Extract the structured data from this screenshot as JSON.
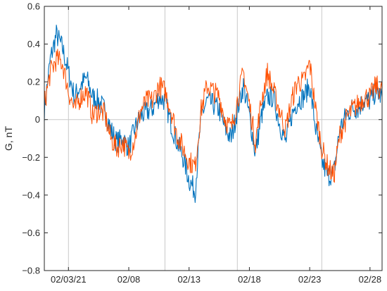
{
  "chart_data": {
    "type": "line",
    "title": "",
    "xlabel": "",
    "ylabel": "G, nT",
    "xlim": [
      "2021-02-01",
      "2021-03-01"
    ],
    "ylim": [
      -0.8,
      0.6
    ],
    "yticks": [
      -0.8,
      -0.6,
      -0.4,
      -0.2,
      0,
      0.2,
      0.4,
      0.6
    ],
    "ytick_labels": [
      "−0.8",
      "−0.6",
      "−0.4",
      "−0.2",
      "0",
      "0.2",
      "0.4",
      "0.6"
    ],
    "xticks": [
      "2021-02-03",
      "2021-02-08",
      "2021-02-13",
      "2021-02-18",
      "2021-02-23",
      "2021-02-28"
    ],
    "xtick_labels": [
      "02/03/21",
      "02/08",
      "02/13",
      "02/18",
      "02/23",
      "02/28"
    ],
    "vertical_markers": [
      "2021-02-03",
      "2021-02-11",
      "2021-02-17",
      "2021-02-24"
    ],
    "zero_line": true,
    "grid": false,
    "legend": "none",
    "series": [
      {
        "color": "#0072BD",
        "x": [
          "2021-02-01",
          "2021-02-01T12",
          "2021-02-02",
          "2021-02-02T12",
          "2021-02-03",
          "2021-02-03T12",
          "2021-02-04",
          "2021-02-04T12",
          "2021-02-05",
          "2021-02-05T12",
          "2021-02-06",
          "2021-02-06T12",
          "2021-02-07",
          "2021-02-07T12",
          "2021-02-08",
          "2021-02-08T12",
          "2021-02-09",
          "2021-02-09T12",
          "2021-02-10",
          "2021-02-10T12",
          "2021-02-11",
          "2021-02-11T12",
          "2021-02-12",
          "2021-02-12T12",
          "2021-02-13",
          "2021-02-13T12",
          "2021-02-14",
          "2021-02-14T12",
          "2021-02-15",
          "2021-02-15T12",
          "2021-02-16",
          "2021-02-16T12",
          "2021-02-17",
          "2021-02-17T12",
          "2021-02-18",
          "2021-02-18T12",
          "2021-02-19",
          "2021-02-19T12",
          "2021-02-20",
          "2021-02-20T12",
          "2021-02-21",
          "2021-02-21T12",
          "2021-02-22",
          "2021-02-22T12",
          "2021-02-23",
          "2021-02-23T12",
          "2021-02-24",
          "2021-02-24T12",
          "2021-02-25",
          "2021-02-25T12",
          "2021-02-26",
          "2021-02-26T12",
          "2021-02-27",
          "2021-02-27T12",
          "2021-02-28",
          "2021-02-28T12",
          "2021-03-01"
        ],
        "y": [
          0.05,
          0.32,
          0.45,
          0.38,
          0.25,
          0.12,
          0.18,
          0.22,
          0.12,
          0.1,
          0.05,
          -0.05,
          -0.12,
          -0.1,
          -0.15,
          -0.05,
          0.02,
          0.04,
          0.06,
          0.12,
          0.1,
          -0.02,
          -0.12,
          -0.2,
          -0.32,
          -0.38,
          0.02,
          0.1,
          0.08,
          0.05,
          -0.05,
          -0.1,
          0.05,
          0.18,
          0.02,
          -0.18,
          0.02,
          0.12,
          0.12,
          -0.02,
          -0.12,
          0.02,
          0.1,
          0.12,
          0.18,
          -0.05,
          -0.22,
          -0.3,
          -0.28,
          -0.05,
          0.02,
          0.06,
          0.06,
          0.1,
          0.1,
          0.15,
          0.12
        ]
      },
      {
        "color": "#FF4F00",
        "x": [
          "2021-02-01",
          "2021-02-01T12",
          "2021-02-02",
          "2021-02-02T12",
          "2021-02-03",
          "2021-02-03T12",
          "2021-02-04",
          "2021-02-04T12",
          "2021-02-05",
          "2021-02-05T12",
          "2021-02-06",
          "2021-02-06T12",
          "2021-02-07",
          "2021-02-07T12",
          "2021-02-08",
          "2021-02-08T12",
          "2021-02-09",
          "2021-02-09T12",
          "2021-02-10",
          "2021-02-10T12",
          "2021-02-11",
          "2021-02-11T12",
          "2021-02-12",
          "2021-02-12T12",
          "2021-02-13",
          "2021-02-13T12",
          "2021-02-14",
          "2021-02-14T12",
          "2021-02-15",
          "2021-02-15T12",
          "2021-02-16",
          "2021-02-16T12",
          "2021-02-17",
          "2021-02-17T12",
          "2021-02-18",
          "2021-02-18T12",
          "2021-02-19",
          "2021-02-19T12",
          "2021-02-20",
          "2021-02-20T12",
          "2021-02-21",
          "2021-02-21T12",
          "2021-02-22",
          "2021-02-22T12",
          "2021-02-23",
          "2021-02-23T12",
          "2021-02-24",
          "2021-02-24T12",
          "2021-02-25",
          "2021-02-25T12",
          "2021-02-26",
          "2021-02-26T12",
          "2021-02-27",
          "2021-02-27T12",
          "2021-02-28",
          "2021-02-28T12",
          "2021-03-01"
        ],
        "y": [
          0.08,
          0.25,
          0.32,
          0.3,
          0.15,
          0.05,
          0.12,
          0.15,
          0.02,
          0.05,
          0.03,
          -0.1,
          -0.15,
          -0.12,
          -0.18,
          -0.1,
          0.05,
          0.1,
          0.1,
          0.18,
          0.15,
          0.05,
          -0.08,
          -0.15,
          -0.22,
          -0.25,
          0.05,
          0.18,
          0.15,
          0.12,
          0.0,
          -0.05,
          0.1,
          0.25,
          0.08,
          -0.12,
          0.1,
          0.25,
          0.15,
          0.05,
          -0.05,
          0.1,
          0.2,
          0.2,
          0.3,
          0.05,
          -0.15,
          -0.25,
          -0.3,
          -0.08,
          0.0,
          0.05,
          0.08,
          0.12,
          0.12,
          0.18,
          0.15
        ]
      }
    ]
  }
}
